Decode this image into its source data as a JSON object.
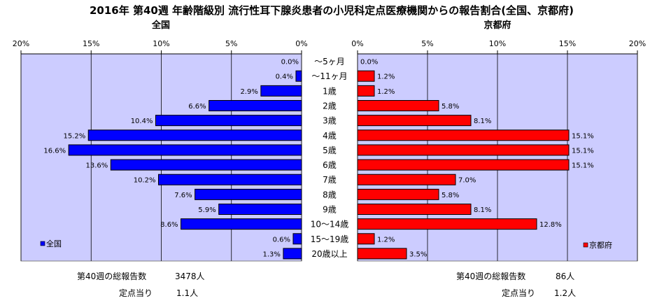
{
  "chart_data": {
    "type": "bar",
    "title": "2016年 第40週 年齢階級別 流行性耳下腺炎患者の小児科定点医療機関からの報告割合(全国、京都府)",
    "categories": [
      "～5ヶ月",
      "～11ヶ月",
      "1歳",
      "2歳",
      "3歳",
      "4歳",
      "5歳",
      "6歳",
      "7歳",
      "8歳",
      "9歳",
      "10～14歳",
      "15～19歳",
      "20歳以上"
    ],
    "series": [
      {
        "name": "全国",
        "color": "#0000ff",
        "values": [
          0.0,
          0.4,
          2.9,
          6.6,
          10.4,
          15.2,
          16.6,
          13.6,
          10.2,
          7.6,
          5.9,
          8.6,
          0.6,
          1.3
        ],
        "labels": [
          "0.0%",
          "0.4%",
          "2.9%",
          "6.6%",
          "10.4%",
          "15.2%",
          "16.6%",
          "13.6%",
          "10.2%",
          "7.6%",
          "5.9%",
          "8.6%",
          "0.6%",
          "1.3%"
        ]
      },
      {
        "name": "京都府",
        "color": "#ff0000",
        "values": [
          0.0,
          1.2,
          1.2,
          5.8,
          8.1,
          15.1,
          15.1,
          15.1,
          7.0,
          5.8,
          8.1,
          12.8,
          1.2,
          3.5
        ],
        "labels": [
          "0.0%",
          "1.2%",
          "1.2%",
          "5.8%",
          "8.1%",
          "15.1%",
          "15.1%",
          "15.1%",
          "7.0%",
          "5.8%",
          "8.1%",
          "12.8%",
          "1.2%",
          "3.5%"
        ]
      }
    ],
    "panel_titles": [
      "全国",
      "京都府"
    ],
    "left_ticks": [
      "20%",
      "15%",
      "10%",
      "5%",
      "0%"
    ],
    "right_ticks": [
      "0%",
      "5%",
      "10%",
      "15%",
      "20%"
    ],
    "xlim": [
      0,
      20
    ],
    "legend_position": "bottom-left and bottom-right",
    "plot_background": "#ccccff"
  },
  "stats": {
    "national": {
      "total_label": "第40週の総報告数",
      "total_value": "3478人",
      "per_label": "定点当り",
      "per_value": "1.1人"
    },
    "kyoto": {
      "total_label": "第40週の総報告数",
      "total_value": "86人",
      "per_label": "定点当り",
      "per_value": "1.2人"
    }
  }
}
